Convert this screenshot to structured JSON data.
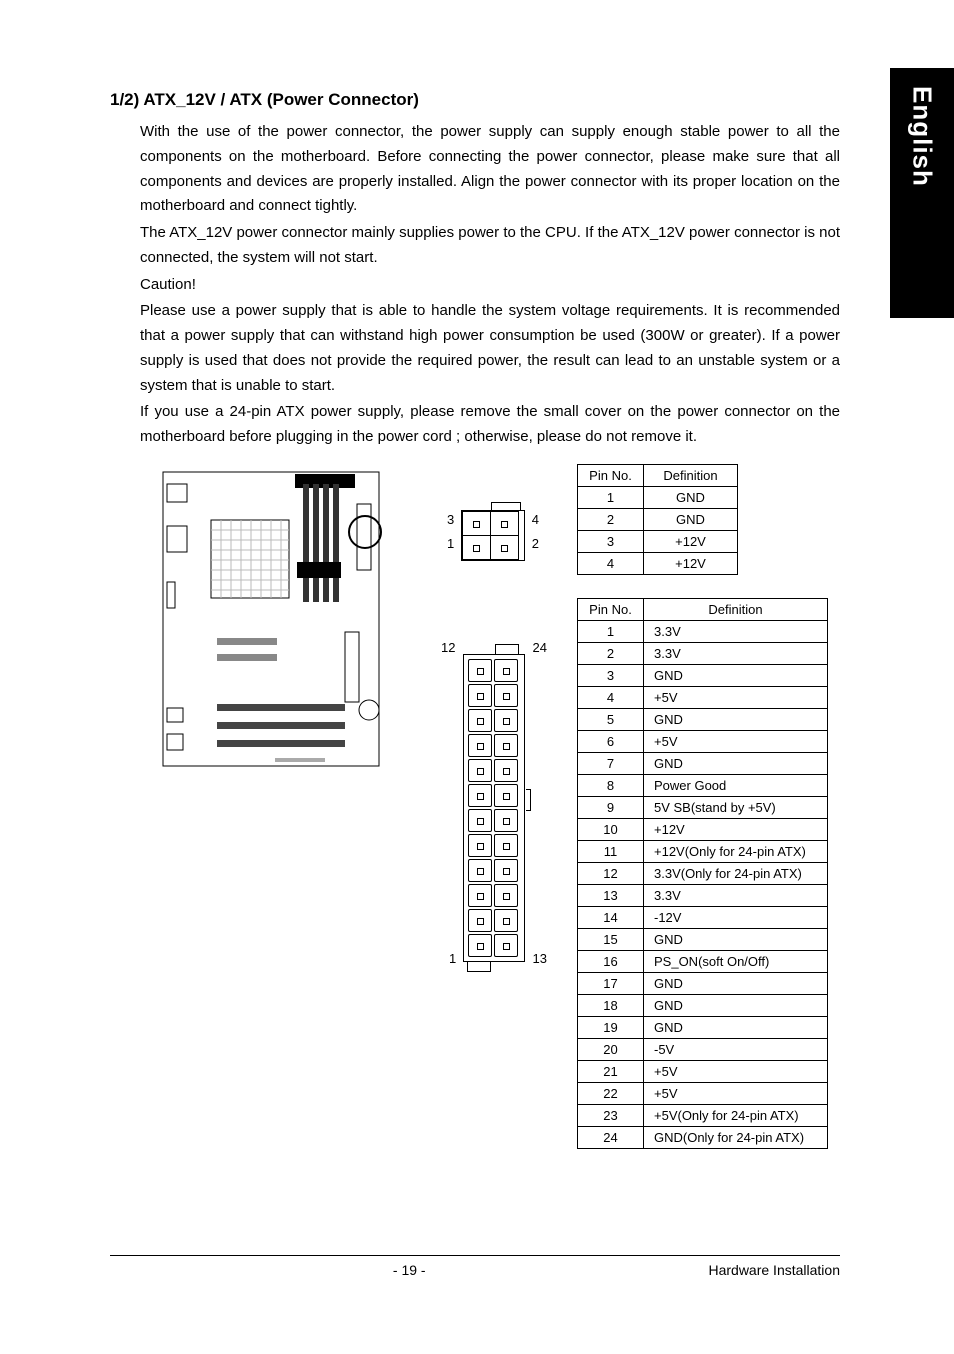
{
  "side_tab": "English",
  "heading": "1/2) ATX_12V / ATX (Power Connector)",
  "paragraphs": {
    "p1": "With the use of the power connector, the power supply can supply enough stable power to all the components on the motherboard. Before connecting the power connector, please make sure that all components and devices are properly installed.  Align the power connector with its proper location on the motherboard and connect tightly.",
    "p2": "The ATX_12V power connector mainly supplies power to the CPU. If the ATX_12V power connector is not connected, the system will not start.",
    "p3": "Caution!",
    "p4": "Please use a power supply that is able to handle the system voltage requirements.  It is recommended that a power supply that can withstand high power consumption be used (300W or greater).  If a power supply is used that does not provide the required power, the result can lead to an unstable system or a system that is unable to start.",
    "p5": "If you use a 24-pin ATX power supply, please remove the small cover on the power connector on the motherboard before plugging in the power cord ; otherwise, please do not remove it."
  },
  "table_headers": {
    "pin": "Pin No.",
    "def": "Definition"
  },
  "conn4_labels": {
    "tl": "3",
    "tr": "4",
    "bl": "1",
    "br": "2"
  },
  "conn24_labels": {
    "tl": "12",
    "tr": "24",
    "bl": "1",
    "br": "13"
  },
  "table4_rows": [
    {
      "pin": "1",
      "def": "GND"
    },
    {
      "pin": "2",
      "def": "GND"
    },
    {
      "pin": "3",
      "def": "+12V"
    },
    {
      "pin": "4",
      "def": "+12V"
    }
  ],
  "table24_rows": [
    {
      "pin": "1",
      "def": "3.3V"
    },
    {
      "pin": "2",
      "def": "3.3V"
    },
    {
      "pin": "3",
      "def": "GND"
    },
    {
      "pin": "4",
      "def": "+5V"
    },
    {
      "pin": "5",
      "def": "GND"
    },
    {
      "pin": "6",
      "def": "+5V"
    },
    {
      "pin": "7",
      "def": "GND"
    },
    {
      "pin": "8",
      "def": "Power Good"
    },
    {
      "pin": "9",
      "def": "5V SB(stand by +5V)"
    },
    {
      "pin": "10",
      "def": "+12V"
    },
    {
      "pin": "11",
      "def": "+12V(Only for 24-pin ATX)"
    },
    {
      "pin": "12",
      "def": "3.3V(Only for 24-pin ATX)"
    },
    {
      "pin": "13",
      "def": "3.3V"
    },
    {
      "pin": "14",
      "def": "-12V"
    },
    {
      "pin": "15",
      "def": "GND"
    },
    {
      "pin": "16",
      "def": "PS_ON(soft On/Off)"
    },
    {
      "pin": "17",
      "def": "GND"
    },
    {
      "pin": "18",
      "def": "GND"
    },
    {
      "pin": "19",
      "def": "GND"
    },
    {
      "pin": "20",
      "def": "-5V"
    },
    {
      "pin": "21",
      "def": "+5V"
    },
    {
      "pin": "22",
      "def": "+5V"
    },
    {
      "pin": "23",
      "def": "+5V(Only for 24-pin ATX)"
    },
    {
      "pin": "24",
      "def": "GND(Only for 24-pin ATX)"
    }
  ],
  "footer": {
    "page": "- 19 -",
    "section": "Hardware Installation"
  },
  "colors": {
    "bg": "#ffffff",
    "text": "#000000",
    "tab_bg": "#000000",
    "tab_text": "#ffffff",
    "border": "#000000"
  }
}
